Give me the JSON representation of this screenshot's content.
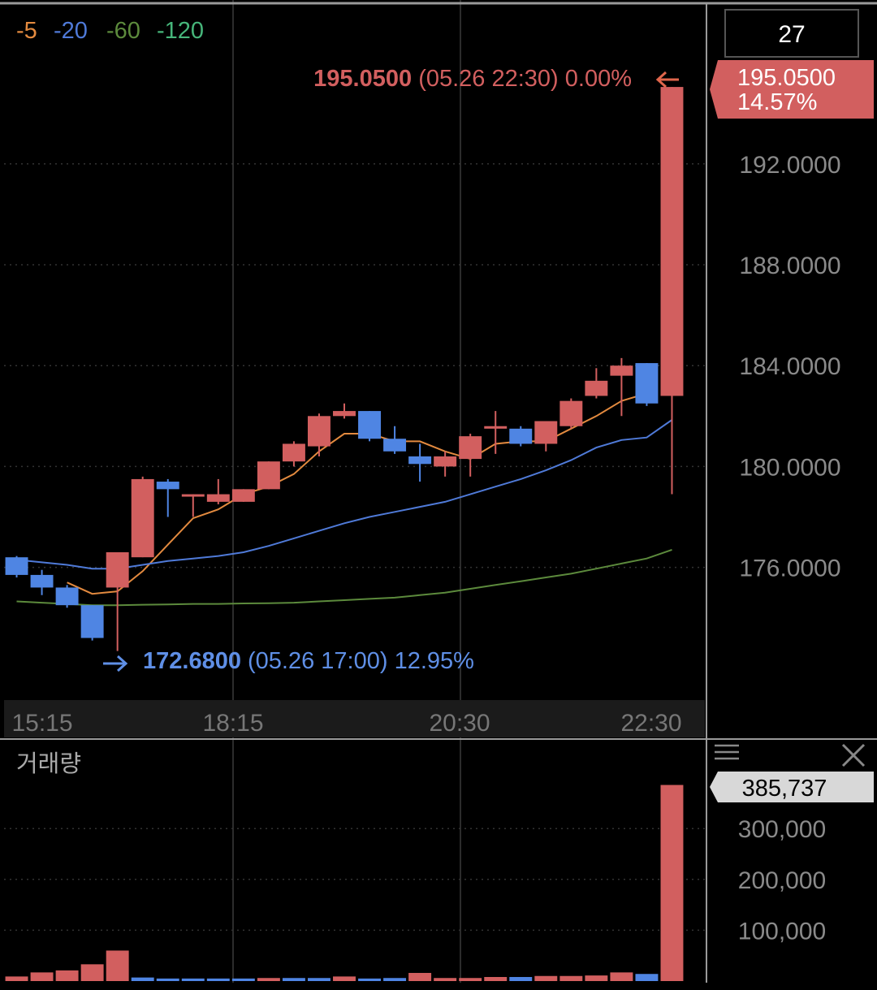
{
  "chart_data": [
    {
      "type": "candlestick",
      "title": "",
      "ylim": [
        171.0,
        197.5
      ],
      "y_ticks": [
        176,
        180,
        184,
        188,
        192
      ],
      "y_tick_labels": [
        "176.0000",
        "180.0000",
        "184.0000",
        "188.0000",
        "192.0000"
      ],
      "x_tick_labels": [
        "15:15",
        "18:15",
        "20:30",
        "22:30"
      ],
      "candle_count_label": "27",
      "moving_average_legend": [
        "5",
        "20",
        "60",
        "120"
      ],
      "ohlc": [
        [
          176.4,
          176.45,
          175.6,
          175.7
        ],
        [
          175.7,
          175.9,
          174.9,
          175.2
        ],
        [
          175.2,
          175.3,
          174.4,
          174.5
        ],
        [
          174.5,
          174.5,
          173.1,
          173.2
        ],
        [
          175.2,
          176.6,
          172.68,
          176.6
        ],
        [
          176.4,
          179.6,
          176.4,
          179.5
        ],
        [
          179.4,
          179.5,
          178.0,
          179.1
        ],
        [
          178.9,
          178.9,
          178.0,
          178.9
        ],
        [
          178.6,
          179.5,
          178.5,
          178.9
        ],
        [
          178.6,
          179.1,
          178.6,
          179.1
        ],
        [
          179.1,
          180.2,
          179.1,
          180.2
        ],
        [
          180.2,
          181.0,
          180.0,
          180.9
        ],
        [
          180.8,
          182.1,
          180.4,
          182.0
        ],
        [
          182.0,
          182.5,
          181.9,
          182.2
        ],
        [
          182.2,
          182.2,
          181.0,
          181.1
        ],
        [
          181.1,
          181.6,
          180.5,
          180.6
        ],
        [
          180.4,
          180.9,
          179.4,
          180.1
        ],
        [
          180.0,
          180.6,
          179.6,
          180.4
        ],
        [
          180.3,
          181.3,
          179.6,
          181.2
        ],
        [
          181.5,
          182.2,
          180.5,
          181.6
        ],
        [
          181.5,
          181.6,
          180.8,
          180.9
        ],
        [
          180.9,
          181.8,
          180.6,
          181.8
        ],
        [
          181.6,
          182.7,
          181.5,
          182.6
        ],
        [
          182.8,
          183.9,
          182.7,
          183.4
        ],
        [
          183.6,
          184.3,
          182.0,
          184.0
        ],
        [
          184.1,
          184.1,
          182.4,
          182.5
        ],
        [
          182.8,
          195.05,
          178.9,
          195.05
        ]
      ],
      "series": [
        {
          "name": "5",
          "color": "#e38a3f",
          "values": [
            null,
            null,
            175.4,
            174.95,
            175.05,
            175.85,
            176.9,
            177.95,
            178.3,
            178.9,
            179.2,
            179.7,
            180.6,
            181.3,
            181.3,
            181.0,
            181.0,
            180.6,
            180.3,
            180.9,
            181.0,
            181.0,
            181.5,
            182.0,
            182.6,
            182.9,
            null
          ]
        },
        {
          "name": "20",
          "color": "#4f7ad8",
          "values": [
            176.3,
            176.2,
            176.1,
            175.95,
            175.95,
            176.1,
            176.25,
            176.35,
            176.45,
            176.6,
            176.85,
            177.15,
            177.45,
            177.75,
            178.0,
            178.2,
            178.4,
            178.6,
            178.9,
            179.2,
            179.5,
            179.85,
            180.25,
            180.75,
            181.05,
            181.15,
            181.85
          ]
        },
        {
          "name": "60",
          "color": "#5c8a3c",
          "values": [
            174.65,
            174.6,
            174.55,
            174.5,
            174.5,
            174.52,
            174.53,
            174.55,
            174.55,
            174.57,
            174.58,
            174.6,
            174.65,
            174.7,
            174.75,
            174.8,
            174.9,
            175.0,
            175.15,
            175.3,
            175.45,
            175.6,
            175.75,
            175.95,
            176.15,
            176.35,
            176.7
          ]
        }
      ],
      "last_price_label": {
        "price": "195.0500",
        "change": "14.57%"
      },
      "high_annotation": {
        "price": "195.0500",
        "detail": "(05.26 22:30) 0.00%"
      },
      "low_annotation": {
        "price": "172.6800",
        "detail": "(05.26 17:00) 12.95%"
      },
      "colors": {
        "up": "#d25f5f",
        "down": "#4f85e3",
        "grid": "#333333",
        "axis_text": "#8a8a8a",
        "price_text": "#cccccc"
      }
    },
    {
      "type": "bar",
      "title": "거래량",
      "ylim": [
        0,
        410000
      ],
      "y_ticks": [
        100000,
        200000,
        300000
      ],
      "y_tick_labels": [
        "100,000",
        "200,000",
        "300,000"
      ],
      "last_value_label": "385,737",
      "values": [
        9000,
        17000,
        21000,
        33000,
        60000,
        7000,
        5000,
        5000,
        5000,
        5000,
        6000,
        6000,
        6000,
        9000,
        5000,
        6000,
        16000,
        6000,
        6000,
        8000,
        8000,
        10000,
        10000,
        11000,
        17000,
        14000,
        385737
      ],
      "directions": [
        "up",
        "up",
        "up",
        "up",
        "up",
        "down",
        "down",
        "down",
        "down",
        "down",
        "up",
        "down",
        "down",
        "up",
        "down",
        "down",
        "up",
        "up",
        "up",
        "up",
        "down",
        "up",
        "up",
        "up",
        "up",
        "down",
        "up"
      ]
    }
  ]
}
